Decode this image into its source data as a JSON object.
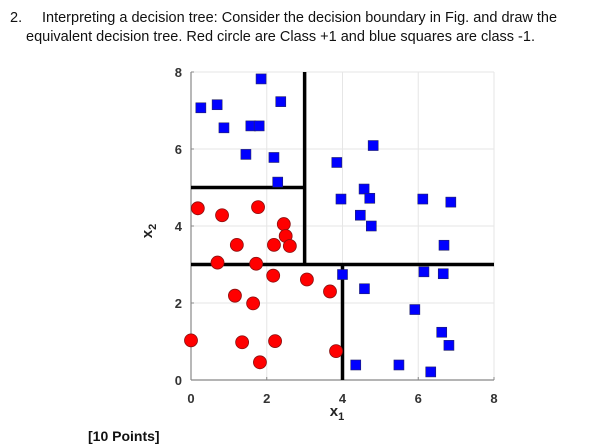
{
  "question": {
    "number": "2.",
    "line1": "Interpreting a decision tree: Consider the decision boundary in Fig. and draw the",
    "line2": "equivalent decision tree. Red circle are Class +1 and blue squares are class -1.",
    "points": "[10 Points]"
  },
  "colors": {
    "class_pos": "#ff0000",
    "class_neg": "#0000ff",
    "boundary": "#000000",
    "grid": "#e6e6e6"
  },
  "chart_data": {
    "type": "scatter",
    "title": "",
    "xlabel": "x1",
    "ylabel": "x2",
    "xlim": [
      0,
      8
    ],
    "ylim": [
      0,
      8
    ],
    "xticks": [
      0,
      2,
      4,
      6,
      8
    ],
    "yticks": [
      0,
      2,
      4,
      6,
      8
    ],
    "grid": true,
    "series": [
      {
        "name": "Class +1 (red circles)",
        "marker": "circle",
        "color": "#ff0000",
        "points": [
          [
            0.18,
            4.46
          ],
          [
            0.82,
            4.28
          ],
          [
            1.77,
            4.49
          ],
          [
            2.45,
            4.05
          ],
          [
            2.5,
            3.74
          ],
          [
            1.21,
            3.51
          ],
          [
            2.19,
            3.51
          ],
          [
            2.61,
            3.48
          ],
          [
            0.7,
            3.05
          ],
          [
            1.72,
            3.02
          ],
          [
            2.17,
            2.71
          ],
          [
            1.16,
            2.19
          ],
          [
            1.64,
            1.99
          ],
          [
            3.06,
            2.61
          ],
          [
            3.67,
            2.3
          ],
          [
            0.0,
            1.03
          ],
          [
            1.35,
            0.98
          ],
          [
            2.22,
            1.01
          ],
          [
            1.82,
            0.46
          ],
          [
            3.83,
            0.75
          ]
        ]
      },
      {
        "name": "Class -1 (blue squares)",
        "marker": "square",
        "color": "#0000ff",
        "points": [
          [
            0.26,
            7.07
          ],
          [
            0.69,
            7.15
          ],
          [
            0.87,
            6.55
          ],
          [
            1.85,
            7.82
          ],
          [
            2.37,
            7.23
          ],
          [
            1.58,
            6.6
          ],
          [
            1.8,
            6.6
          ],
          [
            1.45,
            5.86
          ],
          [
            2.19,
            5.78
          ],
          [
            2.29,
            5.14
          ],
          [
            3.85,
            5.65
          ],
          [
            4.81,
            6.09
          ],
          [
            3.96,
            4.7
          ],
          [
            4.57,
            4.96
          ],
          [
            4.72,
            4.72
          ],
          [
            4.47,
            4.28
          ],
          [
            4.76,
            4.0
          ],
          [
            6.12,
            4.7
          ],
          [
            6.86,
            4.62
          ],
          [
            6.68,
            3.5
          ],
          [
            4.0,
            2.74
          ],
          [
            4.58,
            2.37
          ],
          [
            6.15,
            2.81
          ],
          [
            6.66,
            2.76
          ],
          [
            5.91,
            1.83
          ],
          [
            6.62,
            1.24
          ],
          [
            6.81,
            0.9
          ],
          [
            4.35,
            0.39
          ],
          [
            5.49,
            0.39
          ],
          [
            6.33,
            0.21
          ]
        ]
      }
    ],
    "decision_boundaries": [
      {
        "orientation": "horizontal",
        "y": 3,
        "x_from": 0,
        "x_to": 8
      },
      {
        "orientation": "vertical",
        "x": 3,
        "y_from": 3,
        "y_to": 8
      },
      {
        "orientation": "horizontal",
        "y": 5,
        "x_from": 0,
        "x_to": 3
      },
      {
        "orientation": "vertical",
        "x": 4,
        "y_from": 0,
        "y_to": 3
      }
    ]
  }
}
